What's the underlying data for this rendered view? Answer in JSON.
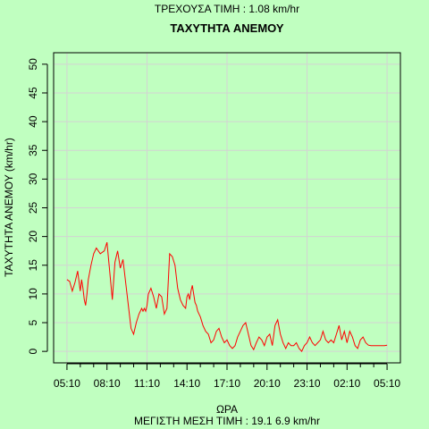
{
  "header": {
    "current_value": "ΤΡΕΧΟΥΣΑ ΤΙΜΗ : 1.08 km/hr",
    "title": "ΤΑΧΥΤΗΤΑ ΑΝΕΜΟΥ"
  },
  "footer": {
    "max_mean": "ΜΕΓΙΣΤΗ ΜΕΣΗ ΤΙΜΗ :  19.1  6.9  km/hr"
  },
  "chart_data": {
    "type": "line",
    "title": "ΤΑΧΥΤΗΤΑ ΑΝΕΜΟΥ",
    "xlabel": "ΩΡΑ",
    "ylabel": "ΤΑΧΥΤΗΤΑ ΑΝΕΜΟΥ (km/hr)",
    "x_tick_labels": [
      "05:10",
      "08:10",
      "11:10",
      "14:10",
      "17:10",
      "20:10",
      "23:10",
      "02:10",
      "05:10"
    ],
    "x_tick_hours": [
      0,
      3,
      6,
      9,
      12,
      15,
      18,
      21,
      24
    ],
    "y_ticks": [
      0,
      5,
      10,
      15,
      20,
      25,
      30,
      35,
      40,
      45,
      50
    ],
    "xlim": [
      -1,
      25
    ],
    "ylim": [
      -2,
      52
    ],
    "grid": true,
    "line_color": "#ff0000",
    "grid_color": "#d3d3d3",
    "background": "#c0ffc0",
    "series": [
      {
        "x_hours": [
          0,
          0.2,
          0.4,
          0.6,
          0.8,
          1.0,
          1.1,
          1.2,
          1.3,
          1.4,
          1.5,
          1.6,
          1.8,
          2.0,
          2.2,
          2.5,
          2.8,
          3.0,
          3.2,
          3.4,
          3.6,
          3.8,
          4.0,
          4.2,
          4.4,
          4.6,
          4.8,
          5.0,
          5.2,
          5.4,
          5.6,
          5.7,
          5.8,
          5.9,
          6.0,
          6.1,
          6.3,
          6.5,
          6.7,
          6.9,
          7.1,
          7.3,
          7.5,
          7.7,
          7.9,
          8.1,
          8.3,
          8.5,
          8.7,
          8.9,
          9.0,
          9.1,
          9.2,
          9.3,
          9.4,
          9.5,
          9.6,
          9.7,
          9.8,
          9.9,
          10.0,
          10.2,
          10.4,
          10.6,
          10.8,
          11.0,
          11.2,
          11.4,
          11.6,
          11.8,
          12.0,
          12.2,
          12.4,
          12.6,
          12.8,
          13.0,
          13.2,
          13.4,
          13.6,
          13.8,
          14.0,
          14.2,
          14.4,
          14.6,
          14.8,
          15.0,
          15.2,
          15.4,
          15.6,
          15.8,
          16.0,
          16.2,
          16.4,
          16.6,
          16.8,
          17.0,
          17.2,
          17.4,
          17.6,
          17.8,
          18.0,
          18.2,
          18.4,
          18.6,
          18.8,
          19.0,
          19.2,
          19.4,
          19.6,
          19.8,
          20.0,
          20.2,
          20.4,
          20.6,
          20.8,
          21.0,
          21.2,
          21.4,
          21.6,
          21.8,
          22.0,
          22.2,
          22.4,
          22.6,
          22.8,
          23.0,
          23.2,
          23.4,
          23.6,
          23.8,
          24.0
        ],
        "values": [
          12.5,
          12.2,
          10.5,
          12.0,
          14.0,
          10.5,
          12.5,
          11.0,
          9.0,
          8.0,
          10.0,
          12.5,
          15.0,
          17.0,
          18.0,
          17.0,
          17.5,
          19.0,
          14.0,
          9.0,
          15.5,
          17.5,
          14.5,
          16.0,
          12.0,
          8.0,
          4.0,
          3.0,
          5.0,
          6.5,
          7.5,
          7.0,
          7.5,
          7.0,
          8.0,
          10.0,
          11.0,
          9.5,
          7.5,
          10.0,
          9.5,
          6.5,
          7.5,
          17.0,
          16.5,
          15.0,
          11.0,
          9.0,
          8.0,
          7.5,
          9.5,
          10.0,
          9.0,
          10.5,
          11.5,
          10.0,
          8.5,
          8.0,
          7.0,
          6.5,
          6.0,
          4.5,
          3.5,
          3.0,
          1.5,
          2.0,
          3.5,
          4.0,
          2.5,
          1.5,
          2.0,
          1.0,
          0.5,
          1.0,
          2.5,
          3.5,
          4.5,
          5.0,
          3.0,
          1.0,
          0.3,
          1.5,
          2.5,
          2.0,
          1.0,
          2.5,
          3.0,
          1.0,
          4.5,
          5.5,
          3.0,
          1.5,
          0.5,
          1.5,
          1.0,
          1.0,
          1.5,
          0.5,
          0.0,
          1.0,
          1.5,
          2.5,
          1.5,
          1.0,
          1.5,
          2.0,
          3.5,
          2.0,
          1.5,
          2.0,
          1.5,
          3.0,
          4.5,
          2.0,
          3.5,
          1.5,
          3.5,
          2.5,
          1.0,
          0.5,
          2.0,
          2.5,
          1.5,
          1.08,
          1.0,
          1.0,
          1.0,
          1.0,
          1.0,
          1.0,
          1.08
        ]
      }
    ]
  }
}
